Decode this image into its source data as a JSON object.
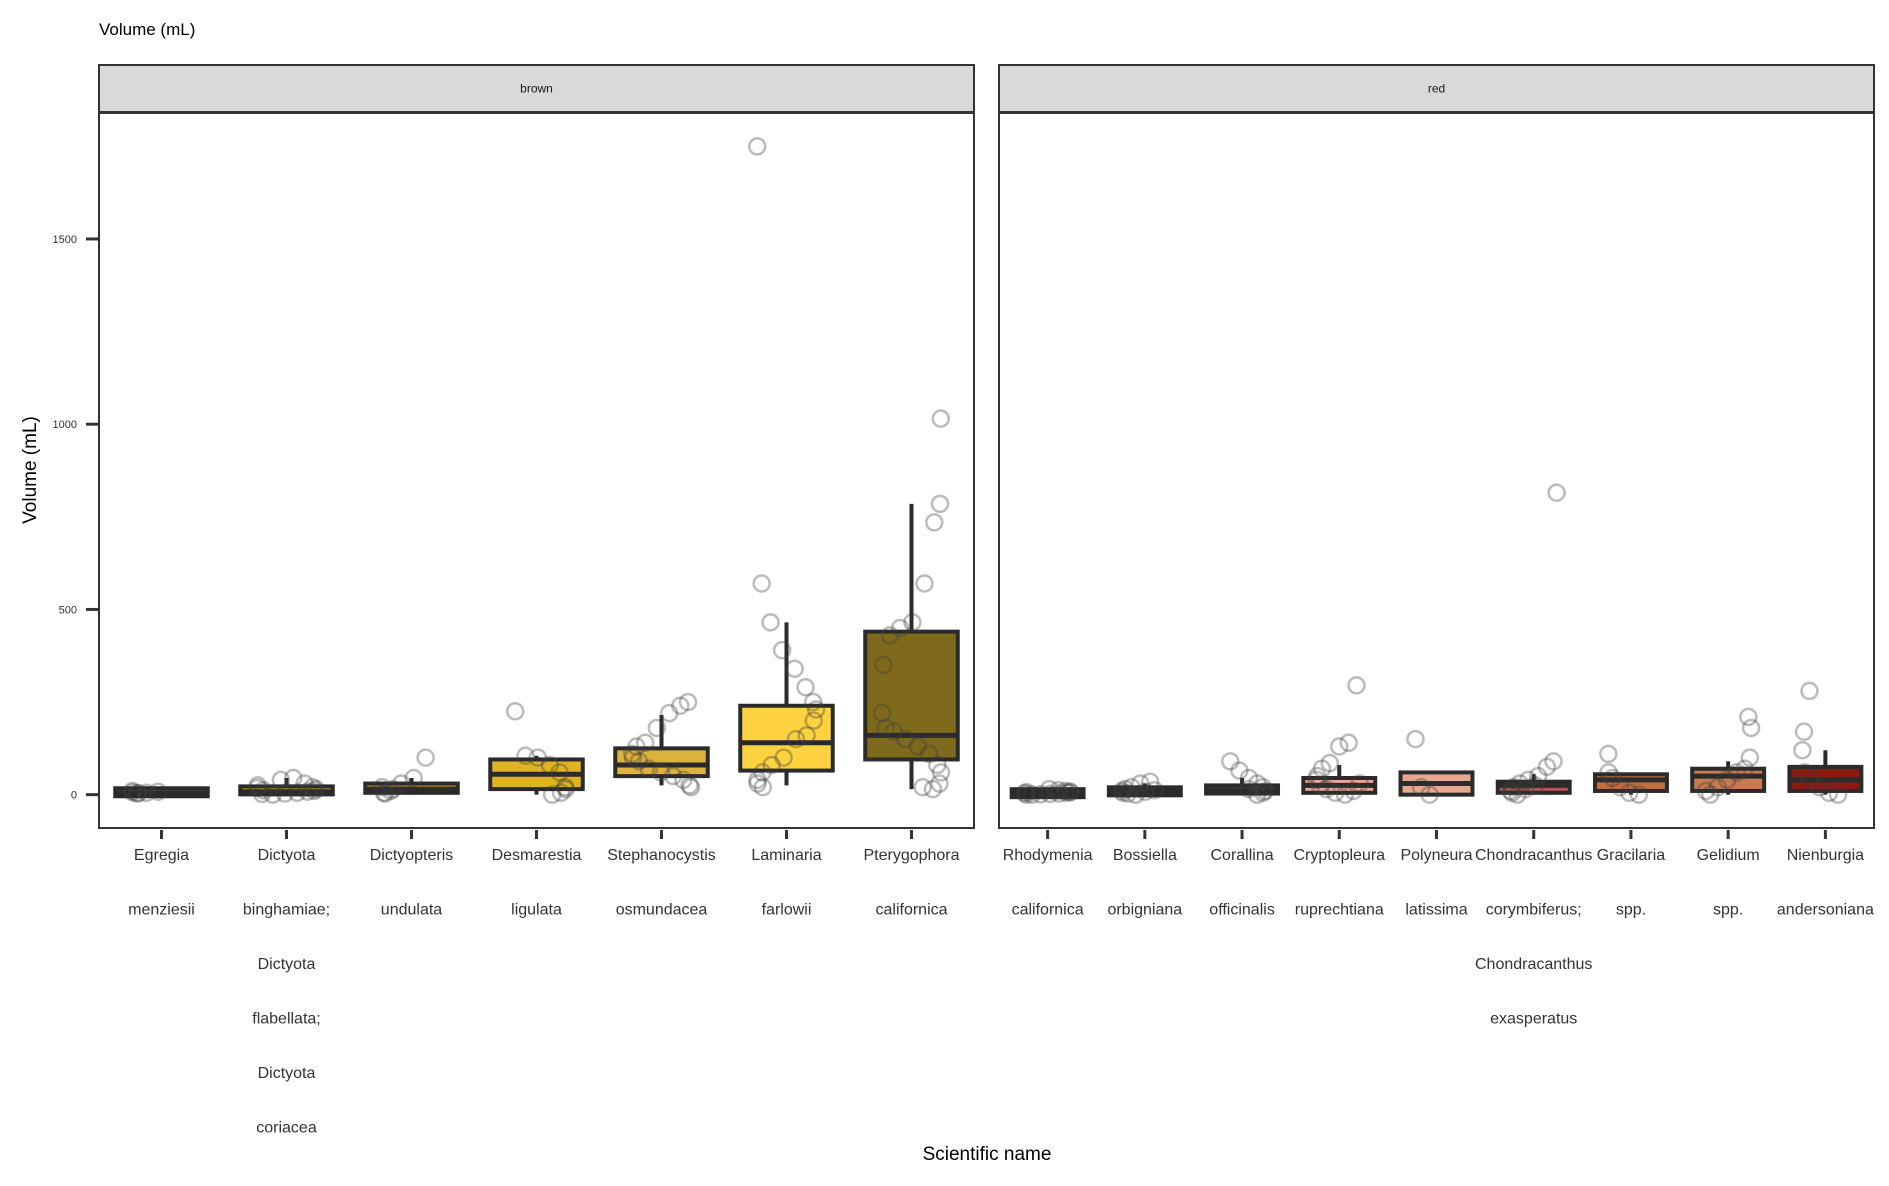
{
  "chart_data": {
    "type": "box",
    "title": "Volume (mL)",
    "xlabel": "Scientific name",
    "ylabel": "Volume (mL)",
    "ylim": [
      -90,
      1840
    ],
    "yticks": [
      0,
      500,
      1000,
      1500
    ],
    "grid": false,
    "legend": "none",
    "facets": [
      {
        "label": "brown",
        "categories": [
          {
            "label": "Egregia menziesii",
            "lines": [
              "Egregia",
              "menziesii"
            ],
            "q1": 3,
            "median": 5,
            "q3": 10,
            "whisker_low": 0,
            "whisker_high": 12,
            "fill": "#e8c430",
            "points": [
              8,
              5,
              3,
              10,
              6,
              4
            ]
          },
          {
            "label": "Dictyota binghamiae; Dictyota flabellata; Dictyota coriacea",
            "lines": [
              "Dictyota",
              "binghamiae;",
              "Dictyota",
              "flabellata;",
              "Dictyota",
              "coriacea"
            ],
            "q1": 3,
            "median": 8,
            "q3": 20,
            "whisker_low": 0,
            "whisker_high": 45,
            "fill": "#d9a520",
            "points": [
              40,
              45,
              30,
              20,
              15,
              10,
              8,
              5,
              3,
              0,
              12,
              25,
              18,
              2
            ]
          },
          {
            "label": "Dictyopteris undulata",
            "lines": [
              "Dictyopteris",
              "undulata"
            ],
            "q1": 5,
            "median": 15,
            "q3": 30,
            "whisker_low": 0,
            "whisker_high": 45,
            "fill": "#c89a20",
            "points": [
              100,
              45,
              30,
              10,
              5,
              20,
              3,
              15
            ]
          },
          {
            "label": "Desmarestia ligulata",
            "lines": [
              "Desmarestia",
              "ligulata"
            ],
            "q1": 15,
            "median": 55,
            "q3": 95,
            "whisker_low": 0,
            "whisker_high": 105,
            "fill": "#e0b420",
            "points": [
              225,
              105,
              100,
              80,
              60,
              20,
              15,
              5,
              0
            ]
          },
          {
            "label": "Stephanocystis osmundacea",
            "lines": [
              "Stephanocystis",
              "osmundacea"
            ],
            "q1": 50,
            "median": 80,
            "q3": 125,
            "whisker_low": 25,
            "whisker_high": 215,
            "fill": "#ddb23a",
            "points": [
              250,
              240,
              220,
              180,
              140,
              130,
              110,
              100,
              90,
              70,
              60,
              50,
              40,
              25,
              20
            ]
          },
          {
            "label": "Laminaria farlowii",
            "lines": [
              "Laminaria",
              "farlowii"
            ],
            "q1": 65,
            "median": 140,
            "q3": 240,
            "whisker_low": 25,
            "whisker_high": 465,
            "fill": "#ffd23f",
            "points": [
              1750,
              570,
              465,
              390,
              340,
              290,
              250,
              230,
              200,
              160,
              150,
              100,
              80,
              60,
              40,
              30,
              20
            ]
          },
          {
            "label": "Pterygophora californica",
            "lines": [
              "Pterygophora",
              "californica"
            ],
            "q1": 95,
            "median": 160,
            "q3": 440,
            "whisker_low": 15,
            "whisker_high": 785,
            "fill": "#7f6a1c",
            "points": [
              1015,
              785,
              735,
              570,
              465,
              450,
              430,
              350,
              220,
              180,
              170,
              150,
              130,
              110,
              80,
              60,
              30,
              15,
              20
            ]
          }
        ]
      },
      {
        "label": "red",
        "categories": [
          {
            "label": "Rhodymenia californica",
            "lines": [
              "Rhodymenia",
              "californica"
            ],
            "q1": 0,
            "median": 3,
            "q3": 8,
            "whisker_low": 0,
            "whisker_high": 15,
            "fill": "#3a3a3a",
            "points": [
              15,
              12,
              10,
              8,
              6,
              5,
              3,
              2,
              1,
              0,
              0,
              4,
              7
            ]
          },
          {
            "label": "Bossiella orbigniana",
            "lines": [
              "Bossiella",
              "orbigniana"
            ],
            "q1": 3,
            "median": 8,
            "q3": 15,
            "whisker_low": 0,
            "whisker_high": 30,
            "fill": "#3a3a3a",
            "points": [
              35,
              30,
              20,
              15,
              10,
              5,
              3,
              0,
              8,
              12
            ]
          },
          {
            "label": "Corallina officinalis",
            "lines": [
              "Corallina",
              "officinalis"
            ],
            "q1": 3,
            "median": 10,
            "q3": 25,
            "whisker_low": 0,
            "whisker_high": 45,
            "fill": "#3a3a3a",
            "points": [
              90,
              65,
              45,
              30,
              20,
              10,
              5,
              0,
              15
            ]
          },
          {
            "label": "Cryptopleura ruprechtiana",
            "lines": [
              "Cryptopleura",
              "ruprechtiana"
            ],
            "q1": 5,
            "median": 25,
            "q3": 45,
            "whisker_low": 0,
            "whisker_high": 80,
            "fill": "#e8a890",
            "points": [
              295,
              140,
              130,
              85,
              70,
              50,
              40,
              25,
              15,
              5,
              0,
              10,
              30
            ]
          },
          {
            "label": "Polyneura latissima",
            "lines": [
              "Polyneura",
              "latissima"
            ],
            "q1": 0,
            "median": 30,
            "q3": 60,
            "whisker_low": 0,
            "whisker_high": 60,
            "fill": "#e8a890",
            "points": [
              150,
              20,
              0
            ]
          },
          {
            "label": "Chondracanthus corymbiferus; Chondracanthus exasperatus",
            "lines": [
              "Chondracanthus",
              "corymbiferus;",
              "Chondracanthus",
              "exasperatus"
            ],
            "q1": 5,
            "median": 25,
            "q3": 35,
            "whisker_low": 0,
            "whisker_high": 55,
            "fill": "#b05a50",
            "points": [
              815,
              90,
              75,
              50,
              40,
              30,
              20,
              10,
              5,
              0,
              15,
              25
            ]
          },
          {
            "label": "Gracilaria spp.",
            "lines": [
              "Gracilaria",
              "spp."
            ],
            "q1": 10,
            "median": 40,
            "q3": 55,
            "whisker_low": 0,
            "whisker_high": 55,
            "fill": "#c07040",
            "points": [
              110,
              60,
              45,
              20,
              5,
              0
            ]
          },
          {
            "label": "Gelidium spp.",
            "lines": [
              "Gelidium",
              "spp."
            ],
            "q1": 10,
            "median": 50,
            "q3": 70,
            "whisker_low": 0,
            "whisker_high": 90,
            "fill": "#c87a50",
            "points": [
              210,
              180,
              100,
              70,
              60,
              40,
              20,
              0,
              10
            ]
          },
          {
            "label": "Nienburgia andersoniana",
            "lines": [
              "Nienburgia",
              "andersoniana"
            ],
            "q1": 10,
            "median": 40,
            "q3": 75,
            "whisker_low": 0,
            "whisker_high": 120,
            "fill": "#8b1a10",
            "points": [
              280,
              170,
              120,
              60,
              40,
              20,
              5,
              0
            ]
          }
        ]
      }
    ]
  }
}
